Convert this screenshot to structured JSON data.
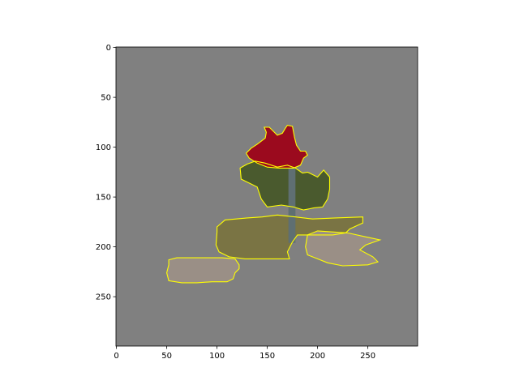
{
  "chart_data": {
    "type": "image",
    "title": "",
    "xlabel": "",
    "ylabel": "",
    "xlim": [
      -0.5,
      299.5
    ],
    "ylim": [
      299.5,
      -0.5
    ],
    "x_ticks": [
      0,
      50,
      100,
      150,
      200,
      250
    ],
    "y_ticks": [
      0,
      50,
      100,
      150,
      200,
      250
    ],
    "x_tick_labels": [
      "0",
      "50",
      "100",
      "150",
      "200",
      "250"
    ],
    "y_tick_labels": [
      "0",
      "50",
      "100",
      "150",
      "200",
      "250"
    ],
    "grid": false,
    "legend": "none",
    "colors": {
      "background": "#808080",
      "outline": "#ffff00",
      "sign_red": "#9b0a1e",
      "pole": "#5f6f72",
      "foliage": "#4a5a2e",
      "pavement": "#9a8f86",
      "grass": "#7a7444"
    }
  }
}
